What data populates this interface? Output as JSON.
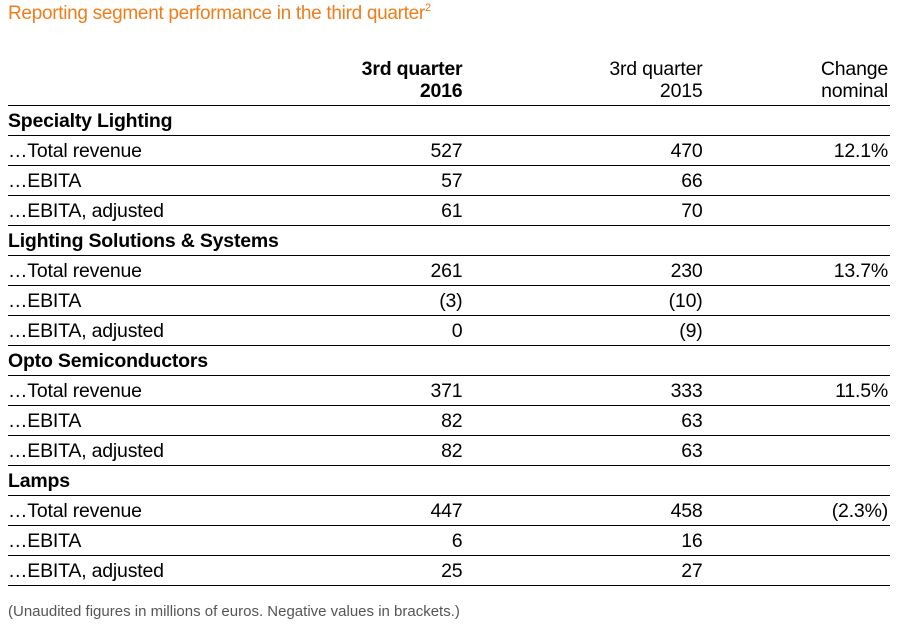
{
  "title": "Reporting segment performance in the third quarter",
  "title_footnote_mark": "2",
  "accent_color": "#f07d1a",
  "columns": [
    {
      "line1": "3rd quarter",
      "line2": "2016"
    },
    {
      "line1": "3rd quarter",
      "line2": "2015"
    },
    {
      "line1": "Change",
      "line2": "nominal"
    }
  ],
  "segments": [
    {
      "name": "Specialty Lighting",
      "rows": [
        {
          "label": "…Total revenue",
          "q2016": "527",
          "q2015": "470",
          "change": "12.1%"
        },
        {
          "label": "…EBITA",
          "q2016": "57",
          "q2015": "66",
          "change": ""
        },
        {
          "label": "…EBITA, adjusted",
          "q2016": "61",
          "q2015": "70",
          "change": ""
        }
      ]
    },
    {
      "name": "Lighting Solutions & Systems",
      "rows": [
        {
          "label": "…Total revenue",
          "q2016": "261",
          "q2015": "230",
          "change": "13.7%"
        },
        {
          "label": "…EBITA",
          "q2016": "(3)",
          "q2015": "(10)",
          "change": ""
        },
        {
          "label": "…EBITA, adjusted",
          "q2016": "0",
          "q2015": "(9)",
          "change": ""
        }
      ]
    },
    {
      "name": "Opto Semiconductors",
      "rows": [
        {
          "label": "…Total revenue",
          "q2016": "371",
          "q2015": "333",
          "change": "11.5%"
        },
        {
          "label": "…EBITA",
          "q2016": "82",
          "q2015": "63",
          "change": ""
        },
        {
          "label": "…EBITA, adjusted",
          "q2016": "82",
          "q2015": "63",
          "change": ""
        }
      ]
    },
    {
      "name": "Lamps",
      "rows": [
        {
          "label": "…Total revenue",
          "q2016": "447",
          "q2015": "458",
          "change": "(2.3%)"
        },
        {
          "label": "…EBITA",
          "q2016": "6",
          "q2015": "16",
          "change": ""
        },
        {
          "label": "…EBITA, adjusted",
          "q2016": "25",
          "q2015": "27",
          "change": ""
        }
      ]
    }
  ],
  "footnote": "(Unaudited figures in millions of euros. Negative values in brackets.)"
}
